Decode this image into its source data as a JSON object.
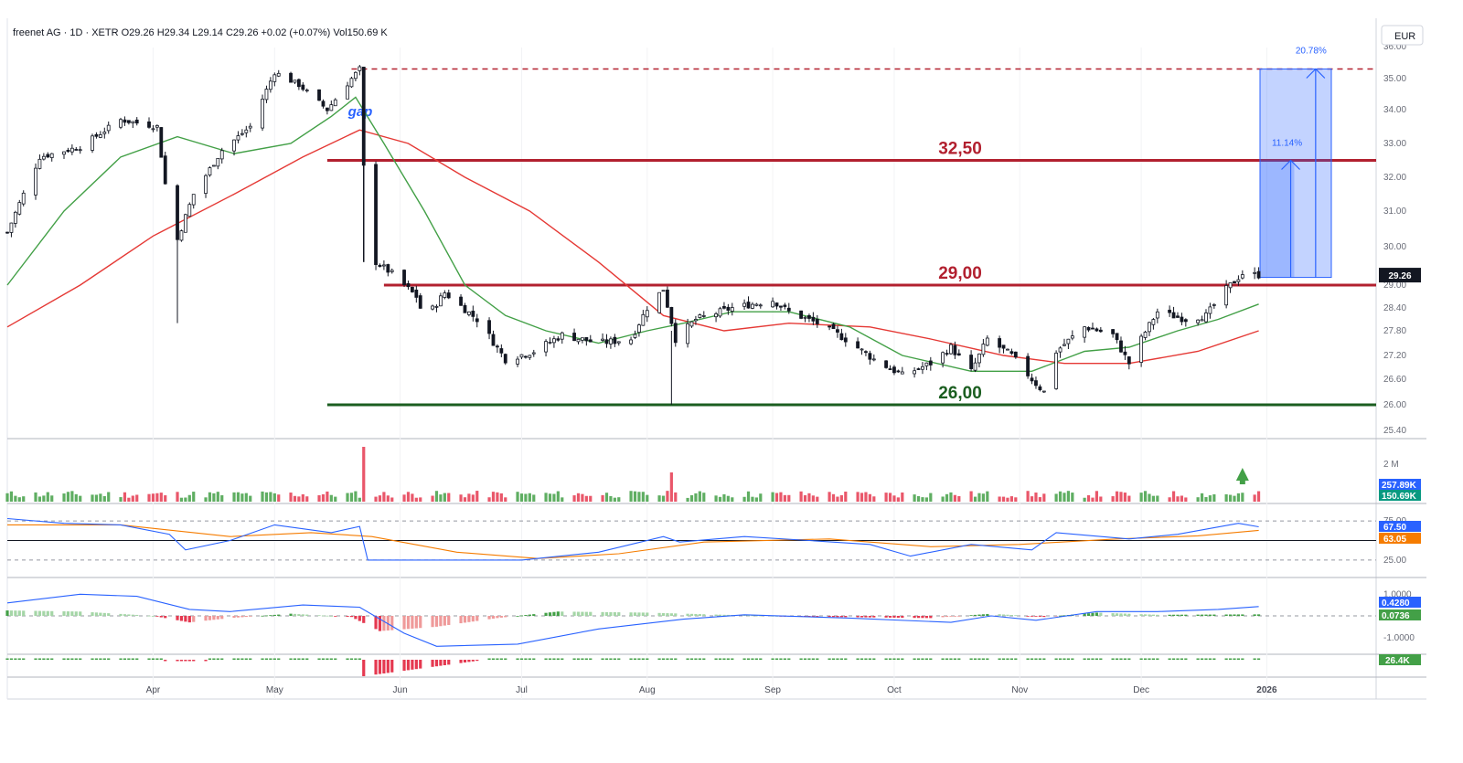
{
  "header": {
    "text": "freenet AG · 1D · XETR  O29.26  H29.34  L29.14  C29.26 +0.02 (+0.07%)  Vol150.69 K",
    "currency": "EUR"
  },
  "chart_data": {
    "type": "candlestick",
    "symbol": "freenet AG",
    "interval": "1D",
    "exchange": "XETR",
    "currency": "EUR",
    "last": {
      "open": 29.26,
      "high": 29.34,
      "low": 29.14,
      "close": 29.26,
      "change": 0.02,
      "change_pct": 0.07,
      "volume": "150.69 K"
    },
    "y_range": [
      25.2,
      36.4
    ],
    "y_ticks": [
      "25.40",
      "26.00",
      "26.60",
      "27.20",
      "27.80",
      "28.40",
      "29.00",
      "30.00",
      "31.00",
      "32.00",
      "33.00",
      "34.00",
      "35.00",
      "36.00"
    ],
    "x_labels": [
      {
        "label": "Apr",
        "date": "2025-04-01"
      },
      {
        "label": "May",
        "date": "2025-05-01"
      },
      {
        "label": "Jun",
        "date": "2025-06-01"
      },
      {
        "label": "Jul",
        "date": "2025-07-01"
      },
      {
        "label": "Aug",
        "date": "2025-08-01"
      },
      {
        "label": "Sep",
        "date": "2025-09-01"
      },
      {
        "label": "Oct",
        "date": "2025-10-01"
      },
      {
        "label": "Nov",
        "date": "2025-11-01"
      },
      {
        "label": "Dec",
        "date": "2025-12-01"
      },
      {
        "label": "2026",
        "date": "2026-01-01"
      }
    ],
    "start_date": "2025-02-24",
    "end_date": "2026-01-28",
    "price_series": [
      {
        "date": "2025-02-24",
        "close": 30.4
      },
      {
        "date": "2025-03-04",
        "close": 32.6
      },
      {
        "date": "2025-03-14",
        "close": 32.9
      },
      {
        "date": "2025-03-24",
        "close": 33.7
      },
      {
        "date": "2025-04-02",
        "close": 33.5
      },
      {
        "date": "2025-04-04",
        "close": 31.8
      },
      {
        "date": "2025-04-07",
        "close": 30.2
      },
      {
        "date": "2025-04-11",
        "close": 31.5
      },
      {
        "date": "2025-04-18",
        "close": 32.8
      },
      {
        "date": "2025-04-25",
        "close": 33.5
      },
      {
        "date": "2025-05-01",
        "close": 35.2
      },
      {
        "date": "2025-05-07",
        "close": 34.8
      },
      {
        "date": "2025-05-14",
        "close": 34.0
      },
      {
        "date": "2025-05-20",
        "close": 35.0
      },
      {
        "date": "2025-05-22",
        "close": 35.3
      },
      {
        "date": "2025-05-23",
        "close": 32.3
      },
      {
        "date": "2025-05-26",
        "close": 29.6
      },
      {
        "date": "2025-05-30",
        "close": 29.3
      },
      {
        "date": "2025-06-05",
        "close": 28.7
      },
      {
        "date": "2025-06-07",
        "close": 28.1
      },
      {
        "date": "2025-06-12",
        "close": 28.8
      },
      {
        "date": "2025-06-20",
        "close": 28.1
      },
      {
        "date": "2025-06-27",
        "close": 27.1
      },
      {
        "date": "2025-07-04",
        "close": 27.3
      },
      {
        "date": "2025-07-11",
        "close": 27.7
      },
      {
        "date": "2025-07-20",
        "close": 27.5
      },
      {
        "date": "2025-07-28",
        "close": 27.6
      },
      {
        "date": "2025-08-01",
        "close": 28.4
      },
      {
        "date": "2025-08-05",
        "close": 28.9
      },
      {
        "date": "2025-08-08",
        "close": 27.6
      },
      {
        "date": "2025-08-13",
        "close": 28.1
      },
      {
        "date": "2025-08-22",
        "close": 28.4
      },
      {
        "date": "2025-09-01",
        "close": 28.6
      },
      {
        "date": "2025-09-05",
        "close": 28.3
      },
      {
        "date": "2025-09-12",
        "close": 28.0
      },
      {
        "date": "2025-09-19",
        "close": 27.6
      },
      {
        "date": "2025-09-26",
        "close": 27.1
      },
      {
        "date": "2025-10-03",
        "close": 26.7
      },
      {
        "date": "2025-10-10",
        "close": 27.0
      },
      {
        "date": "2025-10-15",
        "close": 27.4
      },
      {
        "date": "2025-10-20",
        "close": 26.8
      },
      {
        "date": "2025-10-24",
        "close": 27.6
      },
      {
        "date": "2025-10-30",
        "close": 27.2
      },
      {
        "date": "2025-11-04",
        "close": 26.6
      },
      {
        "date": "2025-11-07",
        "close": 26.3
      },
      {
        "date": "2025-11-10",
        "close": 27.3
      },
      {
        "date": "2025-11-17",
        "close": 27.9
      },
      {
        "date": "2025-11-24",
        "close": 27.7
      },
      {
        "date": "2025-11-28",
        "close": 27.0
      },
      {
        "date": "2025-12-01",
        "close": 27.6
      },
      {
        "date": "2025-12-05",
        "close": 28.3
      },
      {
        "date": "2025-12-12",
        "close": 28.1
      },
      {
        "date": "2025-12-17",
        "close": 28.2
      },
      {
        "date": "2025-12-22",
        "close": 28.9
      },
      {
        "date": "2025-12-26",
        "close": 29.3
      },
      {
        "date": "2025-12-30",
        "close": 29.26
      }
    ],
    "ma_fast": [
      {
        "date": "2025-02-24",
        "value": 29.0
      },
      {
        "date": "2025-03-10",
        "value": 31.0
      },
      {
        "date": "2025-03-24",
        "value": 32.6
      },
      {
        "date": "2025-04-07",
        "value": 33.2
      },
      {
        "date": "2025-04-21",
        "value": 32.7
      },
      {
        "date": "2025-05-05",
        "value": 33.0
      },
      {
        "date": "2025-05-15",
        "value": 33.8
      },
      {
        "date": "2025-05-21",
        "value": 34.4
      },
      {
        "date": "2025-05-28",
        "value": 33.0
      },
      {
        "date": "2025-06-07",
        "value": 31.0
      },
      {
        "date": "2025-06-17",
        "value": 29.0
      },
      {
        "date": "2025-06-27",
        "value": 28.2
      },
      {
        "date": "2025-07-07",
        "value": 27.8
      },
      {
        "date": "2025-07-20",
        "value": 27.5
      },
      {
        "date": "2025-08-01",
        "value": 27.8
      },
      {
        "date": "2025-08-10",
        "value": 28.0
      },
      {
        "date": "2025-08-22",
        "value": 28.3
      },
      {
        "date": "2025-09-05",
        "value": 28.3
      },
      {
        "date": "2025-09-20",
        "value": 27.9
      },
      {
        "date": "2025-10-03",
        "value": 27.2
      },
      {
        "date": "2025-10-20",
        "value": 26.8
      },
      {
        "date": "2025-11-04",
        "value": 26.8
      },
      {
        "date": "2025-11-17",
        "value": 27.3
      },
      {
        "date": "2025-11-28",
        "value": 27.4
      },
      {
        "date": "2025-12-10",
        "value": 27.8
      },
      {
        "date": "2025-12-20",
        "value": 28.1
      },
      {
        "date": "2025-12-30",
        "value": 28.5
      }
    ],
    "ma_slow": [
      {
        "date": "2025-02-24",
        "value": 27.9
      },
      {
        "date": "2025-03-14",
        "value": 29.0
      },
      {
        "date": "2025-04-01",
        "value": 30.3
      },
      {
        "date": "2025-04-21",
        "value": 31.5
      },
      {
        "date": "2025-05-08",
        "value": 32.6
      },
      {
        "date": "2025-05-22",
        "value": 33.4
      },
      {
        "date": "2025-06-03",
        "value": 33.0
      },
      {
        "date": "2025-06-17",
        "value": 32.0
      },
      {
        "date": "2025-07-03",
        "value": 31.0
      },
      {
        "date": "2025-07-20",
        "value": 29.6
      },
      {
        "date": "2025-08-05",
        "value": 28.2
      },
      {
        "date": "2025-08-20",
        "value": 27.8
      },
      {
        "date": "2025-09-05",
        "value": 28.0
      },
      {
        "date": "2025-09-25",
        "value": 27.9
      },
      {
        "date": "2025-10-10",
        "value": 27.6
      },
      {
        "date": "2025-10-28",
        "value": 27.2
      },
      {
        "date": "2025-11-12",
        "value": 27.0
      },
      {
        "date": "2025-11-28",
        "value": 27.0
      },
      {
        "date": "2025-12-15",
        "value": 27.3
      },
      {
        "date": "2025-12-30",
        "value": 27.8
      }
    ],
    "levels": [
      {
        "label": "32,50",
        "value": 32.5,
        "color": "#b2202f"
      },
      {
        "label": "29,00",
        "value": 29.0,
        "color": "#b2202f"
      },
      {
        "label": "26,00",
        "value": 26.0,
        "color": "#1b5e20"
      }
    ],
    "resistance_dashed": 35.3,
    "gap_label": "gap",
    "projection": {
      "base": 29.2,
      "targets": [
        {
          "label": "11.14%",
          "value": 32.5
        },
        {
          "label": "20.78%",
          "value": 35.3
        }
      ]
    },
    "price_tag": {
      "label": "29.26",
      "value": 29.26
    },
    "volume": {
      "ticks": [
        "2 M"
      ],
      "tags": [
        {
          "label": "257.89K",
          "color": "#2962ff"
        },
        {
          "label": "150.69K",
          "color": "#089981"
        }
      ]
    },
    "rsi": {
      "ticks": [
        "75.00",
        "25.00"
      ],
      "tags": [
        {
          "label": "67.50",
          "color": "#2962ff"
        },
        {
          "label": "63.05",
          "color": "#f57c00"
        }
      ],
      "series": [
        {
          "date": "2025-02-24",
          "value": 78
        },
        {
          "date": "2025-03-10",
          "value": 72
        },
        {
          "date": "2025-03-24",
          "value": 70
        },
        {
          "date": "2025-04-05",
          "value": 58
        },
        {
          "date": "2025-04-09",
          "value": 38
        },
        {
          "date": "2025-04-20",
          "value": 50
        },
        {
          "date": "2025-05-01",
          "value": 70
        },
        {
          "date": "2025-05-15",
          "value": 60
        },
        {
          "date": "2025-05-22",
          "value": 68
        },
        {
          "date": "2025-05-24",
          "value": 25
        },
        {
          "date": "2025-06-10",
          "value": 25
        },
        {
          "date": "2025-07-01",
          "value": 25
        },
        {
          "date": "2025-07-20",
          "value": 35
        },
        {
          "date": "2025-08-05",
          "value": 55
        },
        {
          "date": "2025-08-09",
          "value": 48
        },
        {
          "date": "2025-08-25",
          "value": 55
        },
        {
          "date": "2025-09-10",
          "value": 50
        },
        {
          "date": "2025-09-25",
          "value": 45
        },
        {
          "date": "2025-10-05",
          "value": 30
        },
        {
          "date": "2025-10-20",
          "value": 45
        },
        {
          "date": "2025-11-04",
          "value": 38
        },
        {
          "date": "2025-11-10",
          "value": 60
        },
        {
          "date": "2025-11-28",
          "value": 52
        },
        {
          "date": "2025-12-10",
          "value": 58
        },
        {
          "date": "2025-12-25",
          "value": 72
        },
        {
          "date": "2025-12-30",
          "value": 67.5
        }
      ],
      "signal": [
        {
          "date": "2025-02-24",
          "value": 70
        },
        {
          "date": "2025-03-24",
          "value": 70
        },
        {
          "date": "2025-04-20",
          "value": 55
        },
        {
          "date": "2025-05-10",
          "value": 60
        },
        {
          "date": "2025-05-25",
          "value": 55
        },
        {
          "date": "2025-06-15",
          "value": 35
        },
        {
          "date": "2025-07-05",
          "value": 27
        },
        {
          "date": "2025-07-25",
          "value": 33
        },
        {
          "date": "2025-08-15",
          "value": 48
        },
        {
          "date": "2025-09-15",
          "value": 52
        },
        {
          "date": "2025-10-10",
          "value": 42
        },
        {
          "date": "2025-11-01",
          "value": 45
        },
        {
          "date": "2025-11-25",
          "value": 52
        },
        {
          "date": "2025-12-15",
          "value": 56
        },
        {
          "date": "2025-12-30",
          "value": 63
        }
      ]
    },
    "macd": {
      "ticks": [
        "1.0000",
        "-1.0000"
      ],
      "tags": [
        {
          "label": "0.4280",
          "color": "#2962ff"
        },
        {
          "label": "0.0736",
          "color": "#43a047"
        }
      ],
      "line": [
        {
          "date": "2025-02-24",
          "value": 0.6
        },
        {
          "date": "2025-03-14",
          "value": 1.0
        },
        {
          "date": "2025-03-28",
          "value": 0.9
        },
        {
          "date": "2025-04-10",
          "value": 0.3
        },
        {
          "date": "2025-04-20",
          "value": 0.2
        },
        {
          "date": "2025-05-08",
          "value": 0.5
        },
        {
          "date": "2025-05-22",
          "value": 0.4
        },
        {
          "date": "2025-06-02",
          "value": -0.8
        },
        {
          "date": "2025-06-10",
          "value": -1.4
        },
        {
          "date": "2025-06-30",
          "value": -1.3
        },
        {
          "date": "2025-07-20",
          "value": -0.6
        },
        {
          "date": "2025-08-10",
          "value": -0.15
        },
        {
          "date": "2025-08-25",
          "value": 0.05
        },
        {
          "date": "2025-09-20",
          "value": -0.1
        },
        {
          "date": "2025-10-15",
          "value": -0.3
        },
        {
          "date": "2025-10-25",
          "value": 0.0
        },
        {
          "date": "2025-11-05",
          "value": -0.2
        },
        {
          "date": "2025-11-20",
          "value": 0.2
        },
        {
          "date": "2025-12-05",
          "value": 0.2
        },
        {
          "date": "2025-12-20",
          "value": 0.3
        },
        {
          "date": "2025-12-30",
          "value": 0.428
        }
      ],
      "histogram": [
        {
          "date": "2025-02-24",
          "value": 0.25
        },
        {
          "date": "2025-03-14",
          "value": 0.2
        },
        {
          "date": "2025-04-01",
          "value": 0.0
        },
        {
          "date": "2025-04-10",
          "value": -0.3
        },
        {
          "date": "2025-04-20",
          "value": -0.1
        },
        {
          "date": "2025-05-05",
          "value": 0.1
        },
        {
          "date": "2025-05-20",
          "value": -0.05
        },
        {
          "date": "2025-05-27",
          "value": -0.7
        },
        {
          "date": "2025-06-10",
          "value": -0.5
        },
        {
          "date": "2025-06-25",
          "value": -0.1
        },
        {
          "date": "2025-07-10",
          "value": 0.2
        },
        {
          "date": "2025-08-01",
          "value": 0.15
        },
        {
          "date": "2025-08-20",
          "value": 0.05
        },
        {
          "date": "2025-09-15",
          "value": -0.05
        },
        {
          "date": "2025-10-10",
          "value": -0.1
        },
        {
          "date": "2025-10-25",
          "value": 0.1
        },
        {
          "date": "2025-11-07",
          "value": -0.05
        },
        {
          "date": "2025-11-20",
          "value": 0.15
        },
        {
          "date": "2025-12-05",
          "value": 0.05
        },
        {
          "date": "2025-12-30",
          "value": 0.07
        }
      ]
    },
    "volume_osc": {
      "tags": [
        {
          "label": "26.4K",
          "color": "#43a047"
        }
      ]
    }
  }
}
